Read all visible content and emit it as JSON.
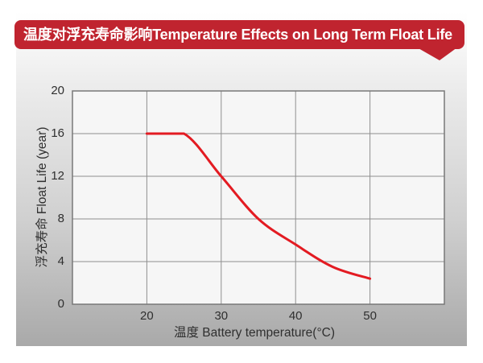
{
  "banner": {
    "title": "温度对浮充寿命影响Temperature Effects on Long Term Float Life",
    "bg_color": "#c0242f",
    "text_color": "#ffffff"
  },
  "chart_data": {
    "type": "line",
    "title": "温度对浮充寿命影响Temperature Effects on Long Term Float Life",
    "xlabel": "温度  Battery temperature(°C)",
    "ylabel": "浮充寿命 Float Life (year)",
    "x": [
      20,
      25,
      30,
      35,
      40,
      45,
      50
    ],
    "y": [
      16,
      16,
      12,
      8,
      5.6,
      3.5,
      2.4
    ],
    "xlim": [
      10,
      60
    ],
    "ylim": [
      0,
      20
    ],
    "x_ticks": [
      20,
      30,
      40,
      50
    ],
    "y_ticks": [
      0,
      4,
      8,
      12,
      16,
      20
    ],
    "grid": true,
    "legend": "none",
    "line_color": "#e31b22",
    "grid_color": "#8f8f8f",
    "border_color": "#787878",
    "plot_bg": "#f6f6f6"
  }
}
